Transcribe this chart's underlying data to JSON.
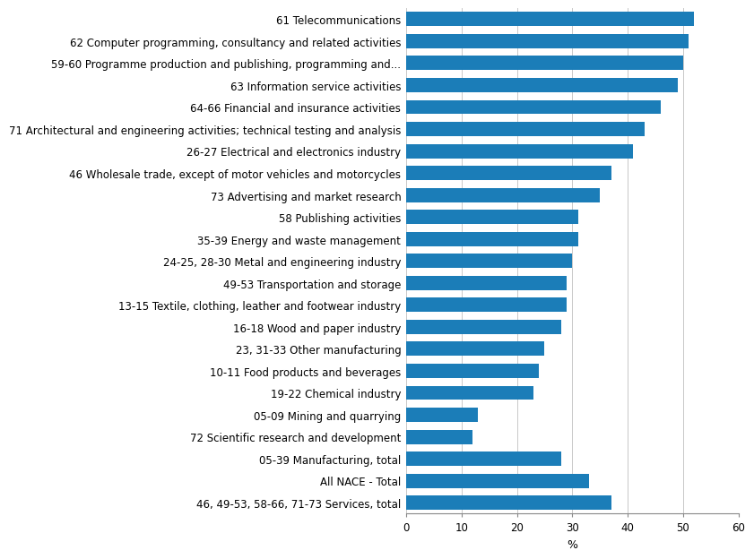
{
  "categories": [
    "46, 49-53, 58-66, 71-73 Services, total",
    "All NACE - Total",
    "05-39 Manufacturing, total",
    "72 Scientific research and development",
    "05-09 Mining and quarrying",
    "19-22 Chemical industry",
    "10-11 Food products and beverages",
    "23, 31-33 Other manufacturing",
    "16-18 Wood and paper industry",
    "13-15 Textile, clothing, leather and footwear industry",
    "49-53 Transportation and storage",
    "24-25, 28-30 Metal and engineering industry",
    "35-39 Energy and waste management",
    "58 Publishing activities",
    "73 Advertising and market research",
    "46 Wholesale trade, except of motor vehicles and motorcycles",
    "26-27 Electrical and electronics industry",
    "71 Architectural and engineering activities; technical testing and analysis",
    "64-66 Financial and insurance activities",
    "63 Information service activities",
    "59-60 Programme production and publishing, programming and...",
    "62 Computer programming, consultancy and related activities",
    "61 Telecommunications"
  ],
  "values": [
    37,
    33,
    28,
    12,
    13,
    23,
    24,
    25,
    28,
    29,
    29,
    30,
    31,
    31,
    35,
    37,
    41,
    43,
    46,
    49,
    50,
    51,
    52
  ],
  "bar_color": "#1b7db8",
  "xlabel": "%",
  "xlim": [
    0,
    60
  ],
  "xticks": [
    0,
    10,
    20,
    30,
    40,
    50,
    60
  ],
  "bar_height": 0.65,
  "grid_color": "#c8c8c8",
  "background_color": "#ffffff",
  "tick_fontsize": 8.5,
  "label_fontsize": 8.5,
  "xlabel_fontsize": 9
}
